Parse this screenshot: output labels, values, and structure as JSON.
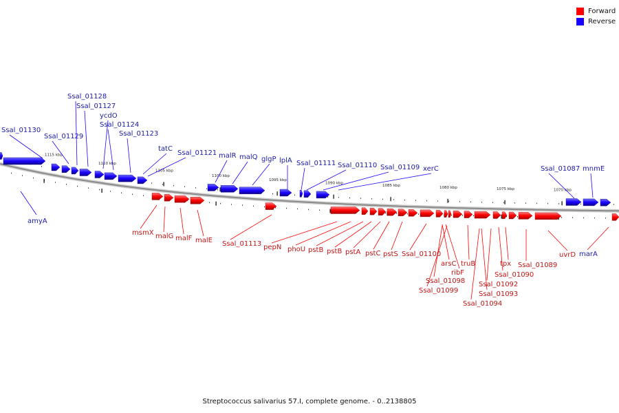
{
  "colors": {
    "forward": "#ff0000",
    "reverse": "#1a00ff",
    "backbone": "#8a8a8a",
    "text_reverse": "#1a1aa8",
    "text_forward": "#c41414"
  },
  "legend": [
    {
      "label": "Forward",
      "strand": "forward"
    },
    {
      "label": "Reverse",
      "strand": "reverse"
    }
  ],
  "caption": "Streptococcus salivarius 57.I, complete genome. - 0..2138805",
  "ticks": [
    "1115 kbp",
    "1110 kbp",
    "1105 kbp",
    "1100 kbp",
    "1095 kbp",
    "1090 kbp",
    "1085 kbp",
    "1080 kbp",
    "1075 kbp",
    "1070 kbp"
  ],
  "reverse_labels": [
    "Ssal_01130",
    "Ssal_01129",
    "Ssal_01128",
    "Ssal_01127",
    "ycdO",
    "Ssal_01124",
    "Ssal_01123",
    "tatC",
    "Ssal_01121",
    "malR",
    "malQ",
    "glgP",
    "lplA",
    "Ssal_01111",
    "Ssal_01110",
    "Ssal_01109",
    "xerC",
    "Ssal_01087",
    "mnmE",
    "amyA"
  ],
  "forward_labels": [
    "msmX",
    "malG",
    "malF",
    "malE",
    "Ssal_01113",
    "pepN",
    "phoU",
    "pstB",
    "pstB",
    "pstA",
    "pstC",
    "pstS",
    "Ssal_01100",
    "arsC",
    "ribF",
    "truB",
    "Ssal_01098",
    "Ssal_01099",
    "tpx",
    "Ssal_01092",
    "Ssal_01093",
    "Ssal_01094",
    "Ssal_01090",
    "Ssal_01089",
    "uvrD",
    "marA"
  ]
}
